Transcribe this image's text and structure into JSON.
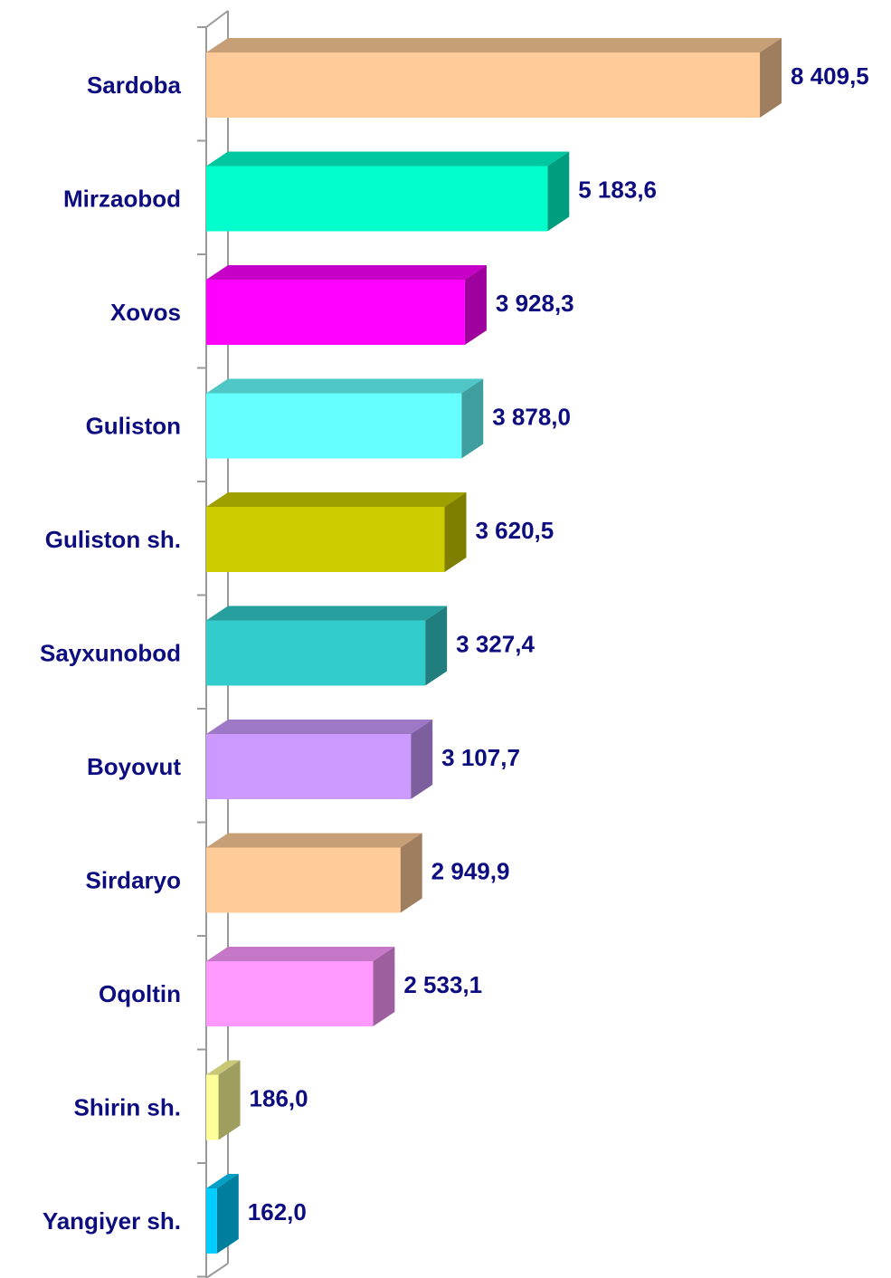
{
  "chart_data": {
    "type": "bar3d_horizontal",
    "categories": [
      "Sardoba",
      "Mirzaobod",
      "Xovos",
      "Guliston",
      "Guliston sh.",
      "Sayxunobod",
      "Boyovut",
      "Sirdaryo",
      "Oqoltin",
      "Shirin sh.",
      "Yangiyer sh."
    ],
    "values": [
      8409.5,
      5183.6,
      3928.3,
      3878.0,
      3620.5,
      3327.4,
      3107.7,
      2949.9,
      2533.1,
      186.0,
      162.0
    ],
    "value_labels": [
      "8 409,5",
      "5 183,6",
      "3 928,3",
      "3 878,0",
      "3 620,5",
      "3 327,4",
      "3 107,7",
      "2 949,9",
      "2 533,1",
      "186,0",
      "162,0"
    ],
    "colors": [
      "#ffcc99",
      "#00ffcc",
      "#ff00ff",
      "#66ffff",
      "#cccc00",
      "#33cccc",
      "#cc99ff",
      "#ffcc99",
      "#ff99ff",
      "#ffff99",
      "#00ccff"
    ],
    "xlim": [
      0,
      9000
    ]
  }
}
